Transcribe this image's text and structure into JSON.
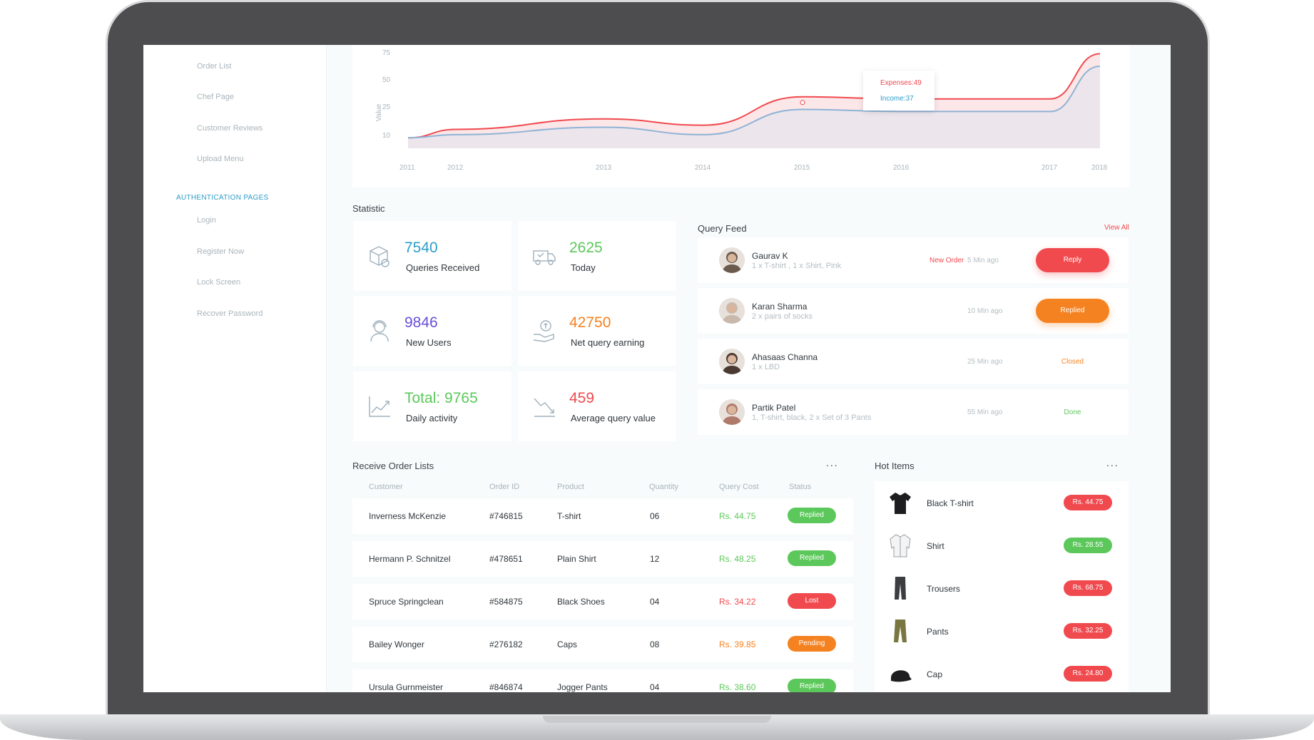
{
  "sidebar": {
    "items_top": [
      "Order List",
      "Chef Page",
      "Customer Reviews",
      "Upload Menu"
    ],
    "auth_section": "AUTHENTICATION PAGES",
    "items_auth": [
      "Login",
      "Register Now",
      "Lock Screen",
      "Recover Password"
    ]
  },
  "chart_data": {
    "type": "area",
    "ylabel": "Value",
    "y_ticks": [
      "75",
      "50",
      "25",
      "10"
    ],
    "x_ticks": [
      "2011",
      "2012",
      "2013",
      "2014",
      "2015",
      "2016",
      "2017",
      "2018"
    ],
    "x": [
      2011,
      2012,
      2013,
      2014,
      2015,
      2016,
      2017,
      2018
    ],
    "series": [
      {
        "name": "Expenses",
        "color": "#f04a4f",
        "values": [
          10,
          18,
          28,
          22,
          49,
          47,
          47,
          90
        ]
      },
      {
        "name": "Income",
        "color": "#8fb3d6",
        "values": [
          10,
          13,
          20,
          13,
          37,
          35,
          35,
          78
        ]
      }
    ],
    "tooltip": {
      "expenses": "Expenses:49",
      "income": "Income:37"
    }
  },
  "statistic": {
    "title": "Statistic",
    "cards": [
      {
        "value": "7540",
        "label": "Queries Received",
        "color": "#2d9cc8",
        "icon": "box-icon"
      },
      {
        "value": "2625",
        "label": "Today",
        "color": "#5cc85b",
        "icon": "truck-icon"
      },
      {
        "value": "9846",
        "label": "New Users",
        "color": "#6a4fd8",
        "icon": "user-headset-icon"
      },
      {
        "value": "42750",
        "label": "Net query earning",
        "color": "#f58220",
        "icon": "money-hand-icon"
      },
      {
        "value": "Total: 9765",
        "label": "Daily activity",
        "color": "#5cc85b",
        "icon": "trend-up-icon"
      },
      {
        "value": "459",
        "label": "Average query value",
        "color": "#f04a4f",
        "icon": "trend-down-icon"
      }
    ]
  },
  "query_feed": {
    "title": "Query Feed",
    "view_all": "View All",
    "rows": [
      {
        "name": "Gaurav K",
        "desc": "1 x T-shirt , 1 x Shirt, Pink",
        "tag": "New Order",
        "time": "5 Min ago",
        "action": "Reply"
      },
      {
        "name": "Karan Sharma",
        "desc": "2 x pairs of socks",
        "tag": "",
        "time": "10 Min ago",
        "action": "Replied"
      },
      {
        "name": "Ahasaas Channa",
        "desc": "1 x LBD",
        "tag": "",
        "time": "25 Min ago",
        "status": "Closed"
      },
      {
        "name": "Partik Patel",
        "desc": "1, T-shirt, black, 2 x Set of 3 Pants",
        "tag": "",
        "time": "55 Min ago",
        "status": "Done"
      }
    ]
  },
  "orders": {
    "title": "Receive Order Lists",
    "more": "...",
    "headers": [
      "Customer",
      "Order ID",
      "Product",
      "Quantity",
      "Query Cost",
      "Status"
    ],
    "rows": [
      {
        "customer": "Inverness McKenzie",
        "id": "#746815",
        "product": "T-shirt",
        "qty": "06",
        "cost": "Rs. 44.75",
        "status": "Replied"
      },
      {
        "customer": "Hermann P. Schnitzel",
        "id": "#478651",
        "product": "Plain Shirt",
        "qty": "12",
        "cost": "Rs. 48.25",
        "status": "Replied"
      },
      {
        "customer": "Spruce Springclean",
        "id": "#584875",
        "product": "Black Shoes",
        "qty": "04",
        "cost": "Rs. 34.22",
        "status": "Lost"
      },
      {
        "customer": "Bailey Wonger",
        "id": "#276182",
        "product": "Caps",
        "qty": "08",
        "cost": "Rs. 39.85",
        "status": "Pending"
      },
      {
        "customer": "Ursula Gurnmeister",
        "id": "#846874",
        "product": "Jogger Pants",
        "qty": "04",
        "cost": "Rs. 38.60",
        "status": "Replied"
      }
    ]
  },
  "hot_items": {
    "title": "Hot Items",
    "more": "...",
    "rows": [
      {
        "name": "Black T-shirt",
        "price": "Rs. 44.75"
      },
      {
        "name": "Shirt",
        "price": "Rs. 28.55"
      },
      {
        "name": "Trousers",
        "price": "Rs. 68.75"
      },
      {
        "name": "Pants",
        "price": "Rs. 32.25"
      },
      {
        "name": "Cap",
        "price": "Rs. 24.80"
      }
    ]
  },
  "colors": {
    "red": "#f04a4f",
    "green": "#5cc85b",
    "orange": "#f58220",
    "blue": "#2d9cc8"
  }
}
